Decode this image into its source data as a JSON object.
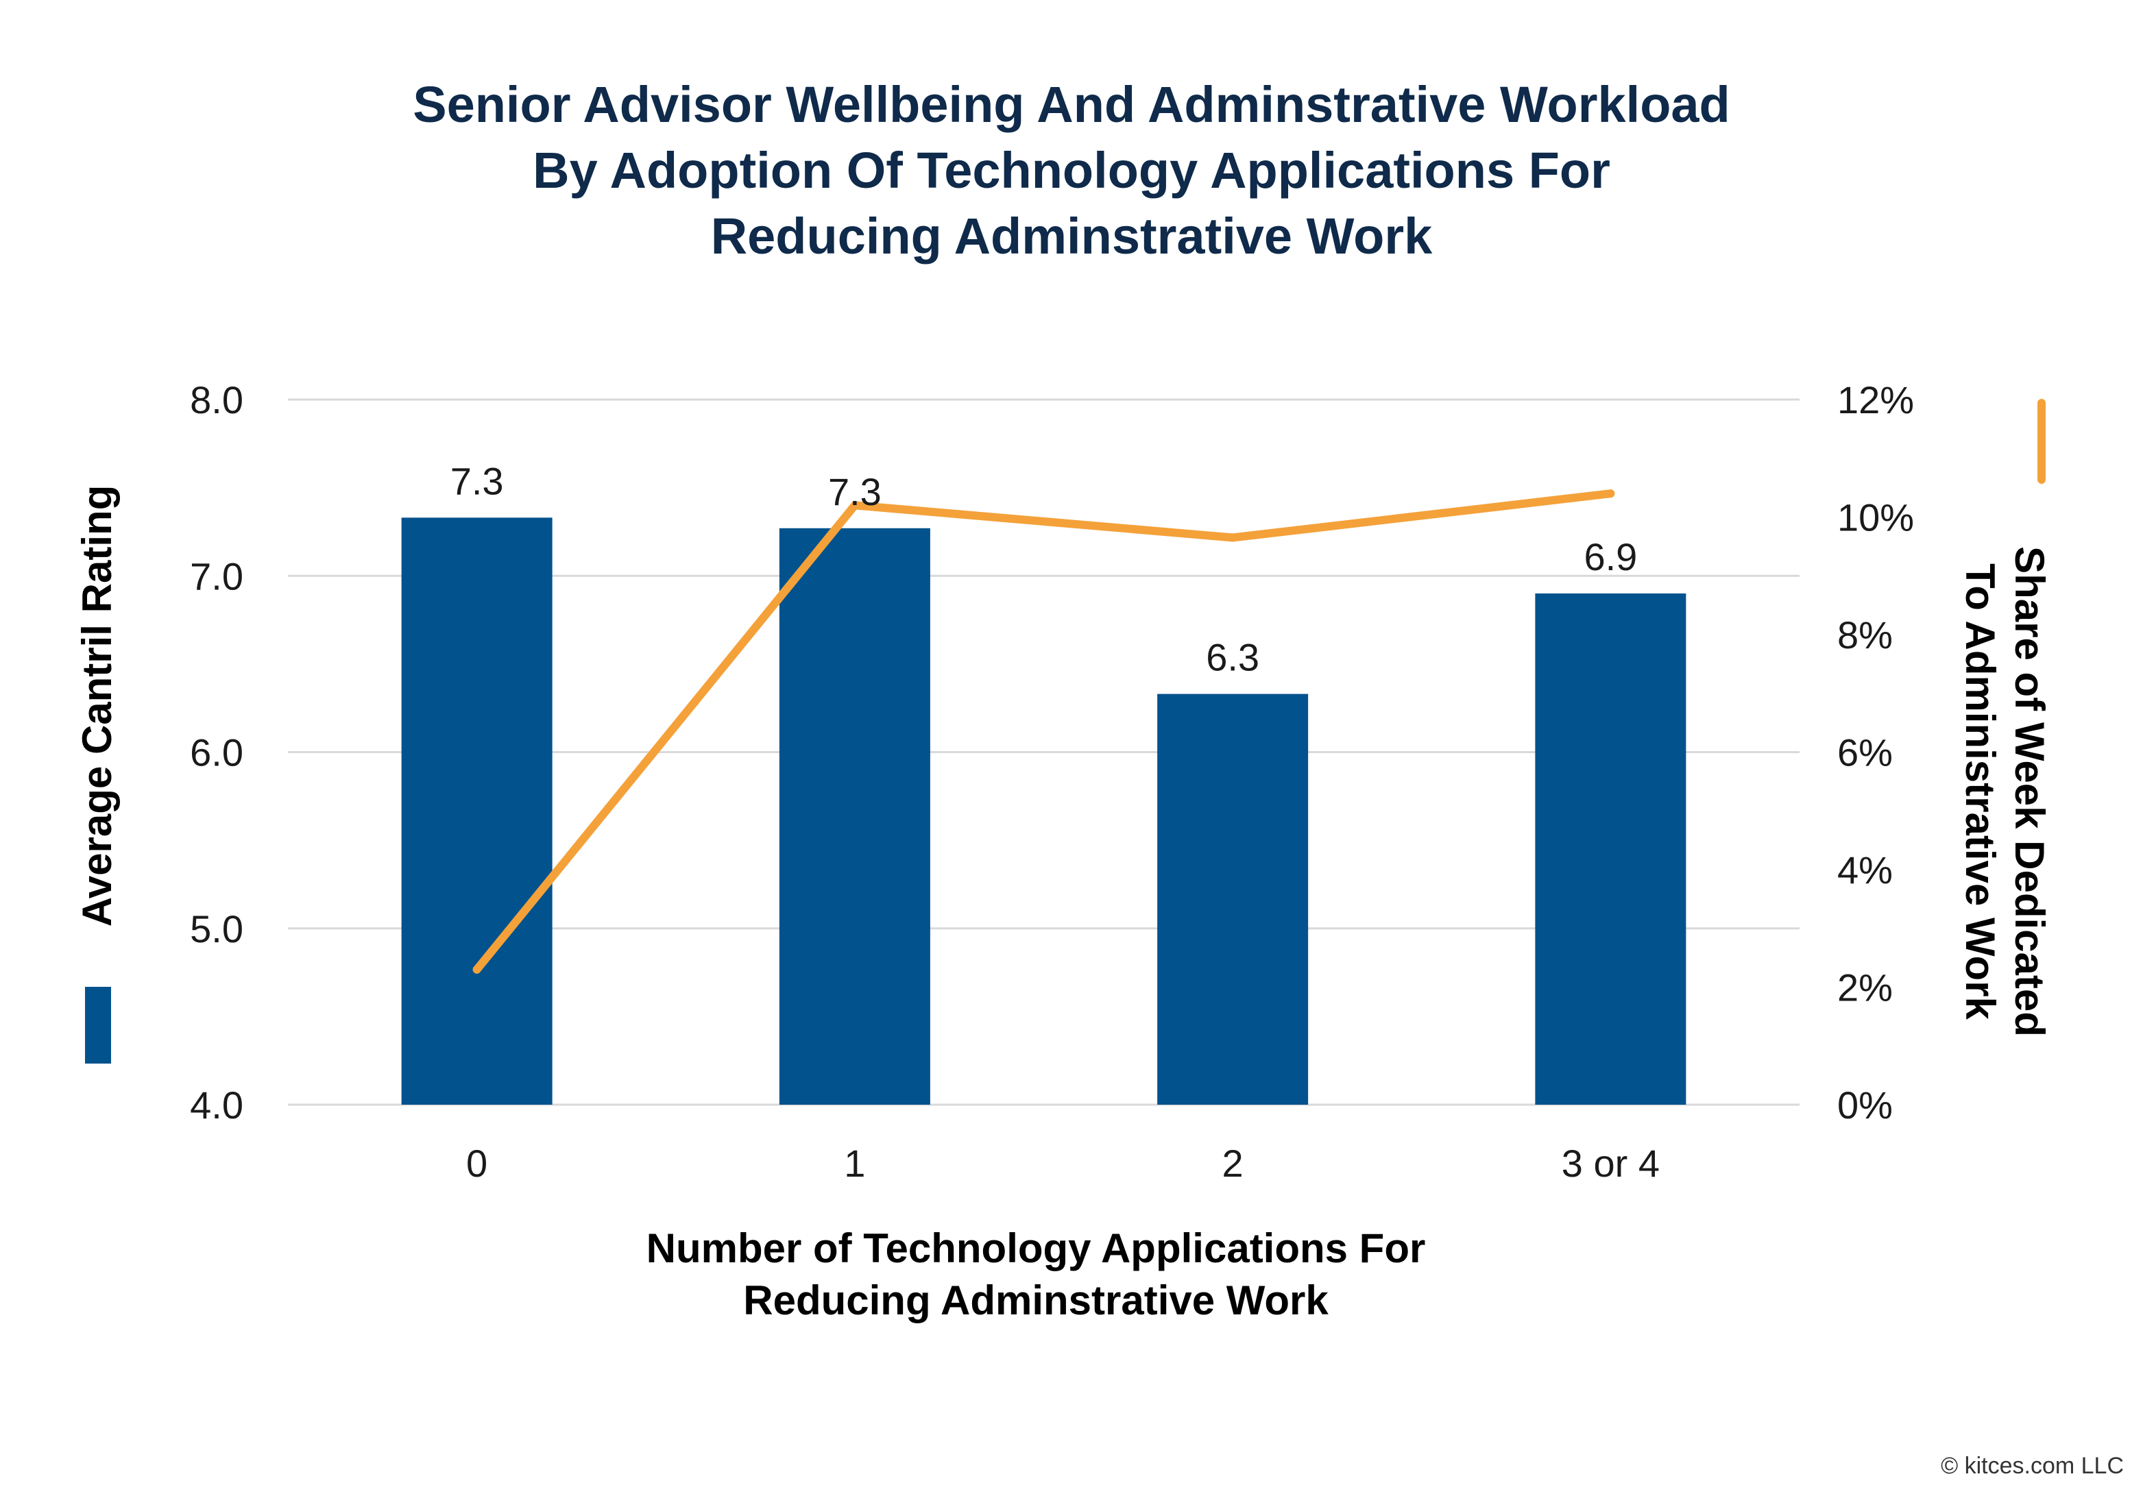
{
  "footer": {
    "credit": "© kitces.com LLC"
  },
  "colors": {
    "title": "#0f2a4a",
    "bar": "#02528d",
    "line": "#f4a13a",
    "grid": "#d9d9d9",
    "text": "#1a1a1a",
    "axis_title": "#000000"
  },
  "chart_data": {
    "type": "bar",
    "title": "Senior Advisor Wellbeing And Adminstrative Workload By Adoption Of Technology Applications For Reducing Adminstrative Work",
    "title_lines": [
      "Senior Advisor Wellbeing And Adminstrative Workload",
      "By Adoption Of Technology Applications For",
      "Reducing Adminstrative Work"
    ],
    "xlabel": "Number of Technology Applications For Reducing Adminstrative Work",
    "xlabel_lines": [
      "Number of Technology Applications For",
      "Reducing Adminstrative Work"
    ],
    "ylabel": "Average Cantril Rating",
    "y2label": "Share of Week Dedicated To Administrative Work",
    "y2label_lines": [
      "Share of Week Dedicated",
      "To Administrative Work"
    ],
    "categories": [
      "0",
      "1",
      "2",
      "3 or 4"
    ],
    "ylim": [
      4.0,
      8.0
    ],
    "yticks": [
      "4.0",
      "5.0",
      "6.0",
      "7.0",
      "8.0"
    ],
    "y2lim": [
      0,
      12
    ],
    "y2ticks": [
      "0%",
      "2%",
      "4%",
      "6%",
      "8%",
      "10%",
      "12%"
    ],
    "grid": true,
    "series": [
      {
        "name": "Average Cantril Rating",
        "type": "bar",
        "axis": "left",
        "values": [
          7.33,
          7.27,
          6.33,
          6.9
        ],
        "labels": [
          "7.3",
          "7.3",
          "6.3",
          "6.9"
        ]
      },
      {
        "name": "Share of Week Dedicated To Administrative Work",
        "type": "line",
        "axis": "right",
        "values": [
          2.3,
          10.2,
          9.65,
          10.4
        ]
      }
    ]
  }
}
